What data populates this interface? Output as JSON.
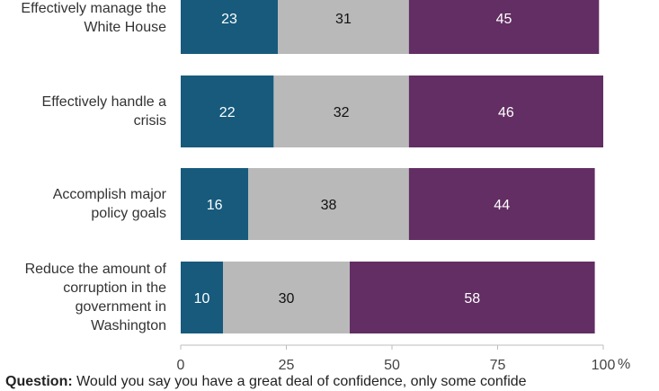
{
  "chart_data": {
    "type": "bar",
    "orientation": "horizontal",
    "stacked": true,
    "categories": [
      "Effectively manage the White House",
      "Effectively handle a crisis",
      "Accomplish major policy goals",
      "Reduce the amount of corruption in the government in Washington"
    ],
    "category_lines": [
      [
        "Effectively manage the",
        "White House"
      ],
      [
        "Effectively handle a",
        "crisis"
      ],
      [
        "Accomplish major",
        "policy goals"
      ],
      [
        "Reduce the amount of",
        "corruption in the",
        "government in",
        "Washington"
      ]
    ],
    "series": [
      {
        "values": [
          23,
          22,
          16,
          10
        ],
        "color": "#175A7C",
        "label_color": "#ffffff"
      },
      {
        "values": [
          31,
          32,
          38,
          30
        ],
        "color": "#B9B9B9",
        "label_color": "#111111"
      },
      {
        "values": [
          45,
          46,
          44,
          58
        ],
        "color": "#622E63",
        "label_color": "#ffffff"
      }
    ],
    "xlim": [
      0,
      100
    ],
    "xticks": [
      "0",
      "25",
      "50",
      "75",
      "100"
    ],
    "x_unit": "%",
    "grid": false
  },
  "footnote": {
    "label": "Question:",
    "text": " Would you say you have a great deal of confidence, only some confide"
  }
}
